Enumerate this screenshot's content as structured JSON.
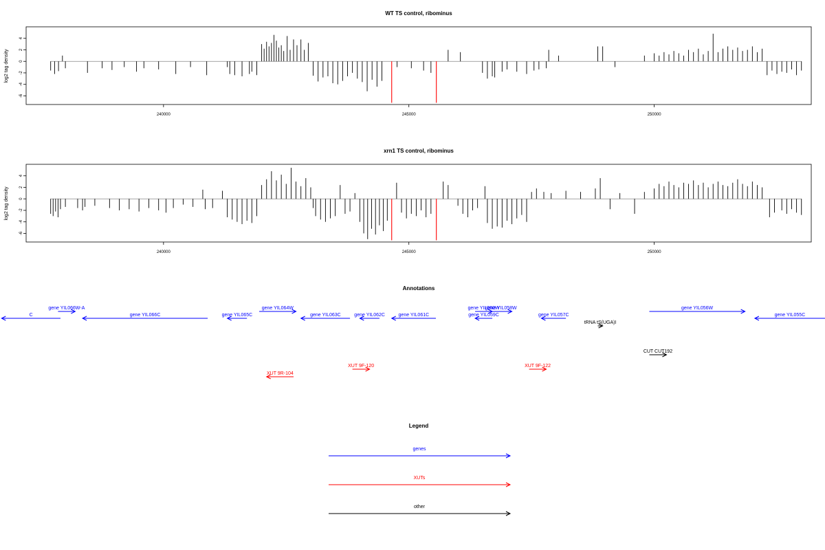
{
  "chart_data": [
    {
      "type": "bar",
      "title": "WT TS control, ribominus",
      "xlabel": "",
      "ylabel": "log2 tag density",
      "xlim": [
        237200,
        253200
      ],
      "ylim": [
        -7.5,
        6
      ],
      "xticks": [
        240000,
        245000,
        250000
      ],
      "yticks": [
        -6,
        -4,
        -2,
        0,
        2,
        4
      ],
      "xticklabels": [
        "240000",
        "245000",
        "250000"
      ],
      "yticklabels": [
        "-6",
        "-4",
        "-2",
        "0",
        "2",
        "4"
      ],
      "highlight_color": "#ff0000",
      "highlights": [
        {
          "x": 244650,
          "y": -7.2
        },
        {
          "x": 245560,
          "y": -7.2
        }
      ],
      "bars": [
        [
          237700,
          -1.6
        ],
        [
          237780,
          -2.2
        ],
        [
          237860,
          -1.7
        ],
        [
          237940,
          1.0
        ],
        [
          238000,
          -1.2
        ],
        [
          238450,
          -2.0
        ],
        [
          238750,
          -1.2
        ],
        [
          238950,
          -1.5
        ],
        [
          239200,
          -1.0
        ],
        [
          239450,
          -1.8
        ],
        [
          239600,
          -1.2
        ],
        [
          239900,
          -1.4
        ],
        [
          240250,
          -2.2
        ],
        [
          240550,
          -1.0
        ],
        [
          240880,
          -2.4
        ],
        [
          241300,
          -1.0
        ],
        [
          241350,
          -2.2
        ],
        [
          241450,
          -2.4
        ],
        [
          241600,
          -2.6
        ],
        [
          241750,
          -2.2
        ],
        [
          241800,
          -1.8
        ],
        [
          241900,
          -2.4
        ],
        [
          242000,
          3.0
        ],
        [
          242050,
          2.2
        ],
        [
          242100,
          3.4
        ],
        [
          242150,
          2.6
        ],
        [
          242200,
          3.2
        ],
        [
          242250,
          4.6
        ],
        [
          242300,
          3.6
        ],
        [
          242350,
          2.4
        ],
        [
          242400,
          2.8
        ],
        [
          242450,
          1.8
        ],
        [
          242520,
          4.4
        ],
        [
          242580,
          2.0
        ],
        [
          242650,
          3.8
        ],
        [
          242720,
          2.8
        ],
        [
          242800,
          3.8
        ],
        [
          242870,
          2.0
        ],
        [
          242950,
          3.2
        ],
        [
          243050,
          -2.5
        ],
        [
          243150,
          -3.5
        ],
        [
          243250,
          -2.8
        ],
        [
          243350,
          -2.6
        ],
        [
          243450,
          -3.8
        ],
        [
          243550,
          -4.0
        ],
        [
          243650,
          -3.4
        ],
        [
          243750,
          -2.6
        ],
        [
          243850,
          -2.0
        ],
        [
          243950,
          -3.0
        ],
        [
          244050,
          -3.6
        ],
        [
          244150,
          -5.2
        ],
        [
          244250,
          -3.2
        ],
        [
          244350,
          -4.4
        ],
        [
          244450,
          -3.4
        ],
        [
          244760,
          -1.0
        ],
        [
          245050,
          -1.2
        ],
        [
          245300,
          -1.6
        ],
        [
          245450,
          -2.0
        ],
        [
          245800,
          2.0
        ],
        [
          246050,
          1.6
        ],
        [
          246500,
          -2.0
        ],
        [
          246600,
          -3.0
        ],
        [
          246700,
          -2.6
        ],
        [
          246750,
          -2.8
        ],
        [
          246900,
          -1.8
        ],
        [
          247000,
          -1.4
        ],
        [
          247200,
          -1.8
        ],
        [
          247400,
          -2.2
        ],
        [
          247550,
          -1.6
        ],
        [
          247650,
          -1.4
        ],
        [
          247800,
          -1.2
        ],
        [
          247850,
          2.0
        ],
        [
          248050,
          1.0
        ],
        [
          248850,
          2.6
        ],
        [
          248950,
          2.6
        ],
        [
          249200,
          -1.0
        ],
        [
          249800,
          1.0
        ],
        [
          250000,
          1.4
        ],
        [
          250100,
          1.0
        ],
        [
          250200,
          1.6
        ],
        [
          250300,
          1.2
        ],
        [
          250400,
          1.8
        ],
        [
          250500,
          1.4
        ],
        [
          250600,
          1.0
        ],
        [
          250700,
          2.0
        ],
        [
          250800,
          1.6
        ],
        [
          250900,
          2.2
        ],
        [
          251000,
          1.2
        ],
        [
          251100,
          1.8
        ],
        [
          251200,
          4.8
        ],
        [
          251300,
          1.6
        ],
        [
          251400,
          2.2
        ],
        [
          251500,
          2.6
        ],
        [
          251600,
          2.0
        ],
        [
          251700,
          2.4
        ],
        [
          251800,
          1.8
        ],
        [
          251900,
          2.0
        ],
        [
          252000,
          2.6
        ],
        [
          252100,
          1.6
        ],
        [
          252200,
          2.2
        ],
        [
          252300,
          -2.4
        ],
        [
          252400,
          -1.6
        ],
        [
          252500,
          -2.2
        ],
        [
          252600,
          -1.8
        ],
        [
          252700,
          -2.0
        ],
        [
          252800,
          -1.4
        ],
        [
          252900,
          -2.4
        ],
        [
          253000,
          -1.6
        ]
      ]
    },
    {
      "type": "bar",
      "title": "xrn1 TS control, ribominus",
      "xlabel": "",
      "ylabel": "log2 tag density",
      "xlim": [
        237200,
        253200
      ],
      "ylim": [
        -7.5,
        6
      ],
      "xticks": [
        240000,
        245000,
        250000
      ],
      "yticks": [
        -6,
        -4,
        -2,
        0,
        2,
        4
      ],
      "xticklabels": [
        "240000",
        "245000",
        "250000"
      ],
      "yticklabels": [
        "-6",
        "-4",
        "-2",
        "0",
        "2",
        "4"
      ],
      "highlight_color": "#ff0000",
      "highlights": [
        {
          "x": 244650,
          "y": -7.2
        },
        {
          "x": 245560,
          "y": -7.2
        }
      ],
      "bars": [
        [
          237700,
          -2.6
        ],
        [
          237750,
          -3.0
        ],
        [
          237800,
          -2.2
        ],
        [
          237850,
          -3.2
        ],
        [
          237900,
          -1.8
        ],
        [
          238000,
          -1.4
        ],
        [
          238250,
          -1.6
        ],
        [
          238350,
          -2.0
        ],
        [
          238400,
          -1.4
        ],
        [
          238600,
          -1.2
        ],
        [
          238900,
          -1.6
        ],
        [
          239100,
          -2.0
        ],
        [
          239300,
          -1.8
        ],
        [
          239500,
          -2.2
        ],
        [
          239700,
          -1.6
        ],
        [
          239900,
          -2.0
        ],
        [
          240050,
          -2.4
        ],
        [
          240200,
          -1.6
        ],
        [
          240400,
          -1.0
        ],
        [
          240600,
          -1.4
        ],
        [
          240800,
          1.6
        ],
        [
          240850,
          -1.8
        ],
        [
          241000,
          -1.6
        ],
        [
          241200,
          1.4
        ],
        [
          241300,
          -3.2
        ],
        [
          241400,
          -3.6
        ],
        [
          241500,
          -4.0
        ],
        [
          241600,
          -4.4
        ],
        [
          241700,
          -3.8
        ],
        [
          241800,
          -4.2
        ],
        [
          241900,
          -3.0
        ],
        [
          242000,
          2.4
        ],
        [
          242100,
          3.4
        ],
        [
          242200,
          4.8
        ],
        [
          242300,
          3.2
        ],
        [
          242400,
          4.2
        ],
        [
          242500,
          2.6
        ],
        [
          242600,
          5.4
        ],
        [
          242700,
          3.0
        ],
        [
          242800,
          2.2
        ],
        [
          242900,
          3.6
        ],
        [
          243000,
          2.0
        ],
        [
          243050,
          -1.6
        ],
        [
          243100,
          -3.0
        ],
        [
          243200,
          -3.6
        ],
        [
          243300,
          -4.0
        ],
        [
          243400,
          -3.4
        ],
        [
          243500,
          -3.0
        ],
        [
          243600,
          2.4
        ],
        [
          243700,
          -2.6
        ],
        [
          243800,
          -2.2
        ],
        [
          243900,
          1.0
        ],
        [
          244000,
          -4.0
        ],
        [
          244080,
          -6.0
        ],
        [
          244160,
          -7.0
        ],
        [
          244240,
          -5.2
        ],
        [
          244320,
          -6.2
        ],
        [
          244400,
          -4.6
        ],
        [
          244480,
          -5.6
        ],
        [
          244560,
          -3.8
        ],
        [
          244750,
          2.8
        ],
        [
          244850,
          -2.4
        ],
        [
          244950,
          -3.4
        ],
        [
          245050,
          -2.6
        ],
        [
          245150,
          -3.0
        ],
        [
          245250,
          -2.0
        ],
        [
          245350,
          -3.2
        ],
        [
          245450,
          -2.6
        ],
        [
          245700,
          3.0
        ],
        [
          245800,
          2.4
        ],
        [
          246000,
          -1.2
        ],
        [
          246100,
          -2.6
        ],
        [
          246200,
          -3.2
        ],
        [
          246300,
          -2.0
        ],
        [
          246400,
          -1.6
        ],
        [
          246550,
          2.2
        ],
        [
          246600,
          -4.2
        ],
        [
          246700,
          -5.2
        ],
        [
          246800,
          -4.8
        ],
        [
          246900,
          -5.0
        ],
        [
          247000,
          -3.8
        ],
        [
          247100,
          -4.4
        ],
        [
          247200,
          -3.4
        ],
        [
          247300,
          -2.8
        ],
        [
          247400,
          -4.0
        ],
        [
          247500,
          1.2
        ],
        [
          247600,
          1.8
        ],
        [
          247750,
          1.2
        ],
        [
          247900,
          1.0
        ],
        [
          248200,
          1.4
        ],
        [
          248500,
          1.2
        ],
        [
          248800,
          1.8
        ],
        [
          248900,
          3.6
        ],
        [
          249100,
          -1.8
        ],
        [
          249300,
          1.0
        ],
        [
          249600,
          -2.6
        ],
        [
          249800,
          1.2
        ],
        [
          250000,
          1.8
        ],
        [
          250100,
          2.6
        ],
        [
          250200,
          2.2
        ],
        [
          250300,
          3.0
        ],
        [
          250400,
          2.4
        ],
        [
          250500,
          2.0
        ],
        [
          250600,
          2.8
        ],
        [
          250700,
          2.6
        ],
        [
          250800,
          3.2
        ],
        [
          250900,
          2.4
        ],
        [
          251000,
          2.8
        ],
        [
          251100,
          2.0
        ],
        [
          251200,
          2.6
        ],
        [
          251300,
          3.0
        ],
        [
          251400,
          2.4
        ],
        [
          251500,
          2.2
        ],
        [
          251600,
          2.8
        ],
        [
          251700,
          3.4
        ],
        [
          251800,
          2.6
        ],
        [
          251900,
          2.2
        ],
        [
          252000,
          3.0
        ],
        [
          252100,
          2.4
        ],
        [
          252200,
          2.0
        ],
        [
          252350,
          -3.2
        ],
        [
          252450,
          -2.4
        ],
        [
          252600,
          -2.0
        ],
        [
          252700,
          -2.6
        ],
        [
          252800,
          -1.8
        ],
        [
          252900,
          -2.4
        ],
        [
          253000,
          -2.8
        ]
      ]
    }
  ],
  "annotations": {
    "title": "Annotations",
    "xlim": [
      237200,
      253200
    ],
    "features": [
      {
        "label": "gene YIL066W-A",
        "x1": 237850,
        "x2": 238200,
        "strand": "+",
        "row": 0,
        "color": "#0000ff"
      },
      {
        "label": "C",
        "x1": 236700,
        "x2": 237900,
        "strand": "-",
        "row": 1,
        "color": "#0000ff"
      },
      {
        "label": "gene YIL066C",
        "x1": 238350,
        "x2": 240900,
        "strand": "-",
        "row": 1,
        "color": "#0000ff"
      },
      {
        "label": "gene YIL065C",
        "x1": 241300,
        "x2": 241700,
        "strand": "-",
        "row": 1,
        "color": "#0000ff"
      },
      {
        "label": "gene YIL064W",
        "x1": 241950,
        "x2": 242700,
        "strand": "+",
        "row": 0,
        "color": "#0000ff"
      },
      {
        "label": "gene YIL063C",
        "x1": 242800,
        "x2": 243800,
        "strand": "-",
        "row": 1,
        "color": "#0000ff"
      },
      {
        "label": "gene YIL062C",
        "x1": 244000,
        "x2": 244400,
        "strand": "-",
        "row": 1,
        "color": "#0000ff"
      },
      {
        "label": "gene YIL061C",
        "x1": 244650,
        "x2": 245550,
        "strand": "-",
        "row": 1,
        "color": "#0000ff"
      },
      {
        "label": "gene YIL060W",
        "x1": 246350,
        "x2": 246700,
        "strand": "+",
        "row": 0,
        "color": "#0000ff"
      },
      {
        "label": "gene YIL058W",
        "x1": 246650,
        "x2": 247100,
        "strand": "+",
        "row": 0,
        "color": "#0000ff"
      },
      {
        "label": "gene YIL059C",
        "x1": 246350,
        "x2": 246700,
        "strand": "-",
        "row": 1,
        "color": "#0000ff"
      },
      {
        "label": "gene YIL057C",
        "x1": 247700,
        "x2": 248200,
        "strand": "-",
        "row": 1,
        "color": "#0000ff"
      },
      {
        "label": "tRNA tS(UGA)I",
        "x1": 248850,
        "x2": 248950,
        "strand": "+",
        "row": 2,
        "color": "#000000"
      },
      {
        "label": "gene YIL056W",
        "x1": 249900,
        "x2": 251850,
        "strand": "+",
        "row": 0,
        "color": "#0000ff"
      },
      {
        "label": "gene YIL055C",
        "x1": 252050,
        "x2": 254000,
        "strand": "-",
        "row": 1,
        "color": "#0000ff"
      },
      {
        "label": "CUT CUT192",
        "x1": 249900,
        "x2": 250250,
        "strand": "+",
        "row": 4,
        "color": "#000000"
      },
      {
        "label": "XUT 9F-120",
        "x1": 243850,
        "x2": 244200,
        "strand": "+",
        "row": 5,
        "color": "#ff0000"
      },
      {
        "label": "XUT 9F-122",
        "x1": 247450,
        "x2": 247800,
        "strand": "+",
        "row": 5,
        "color": "#ff0000"
      },
      {
        "label": "XUT 9R-104",
        "x1": 242100,
        "x2": 242650,
        "strand": "-",
        "row": 6,
        "color": "#ff0000"
      }
    ]
  },
  "legend": {
    "title": "Legend",
    "items": [
      {
        "label": "genes",
        "color": "#0000ff"
      },
      {
        "label": "XUTs",
        "color": "#ff0000"
      },
      {
        "label": "other",
        "color": "#000000"
      }
    ]
  }
}
